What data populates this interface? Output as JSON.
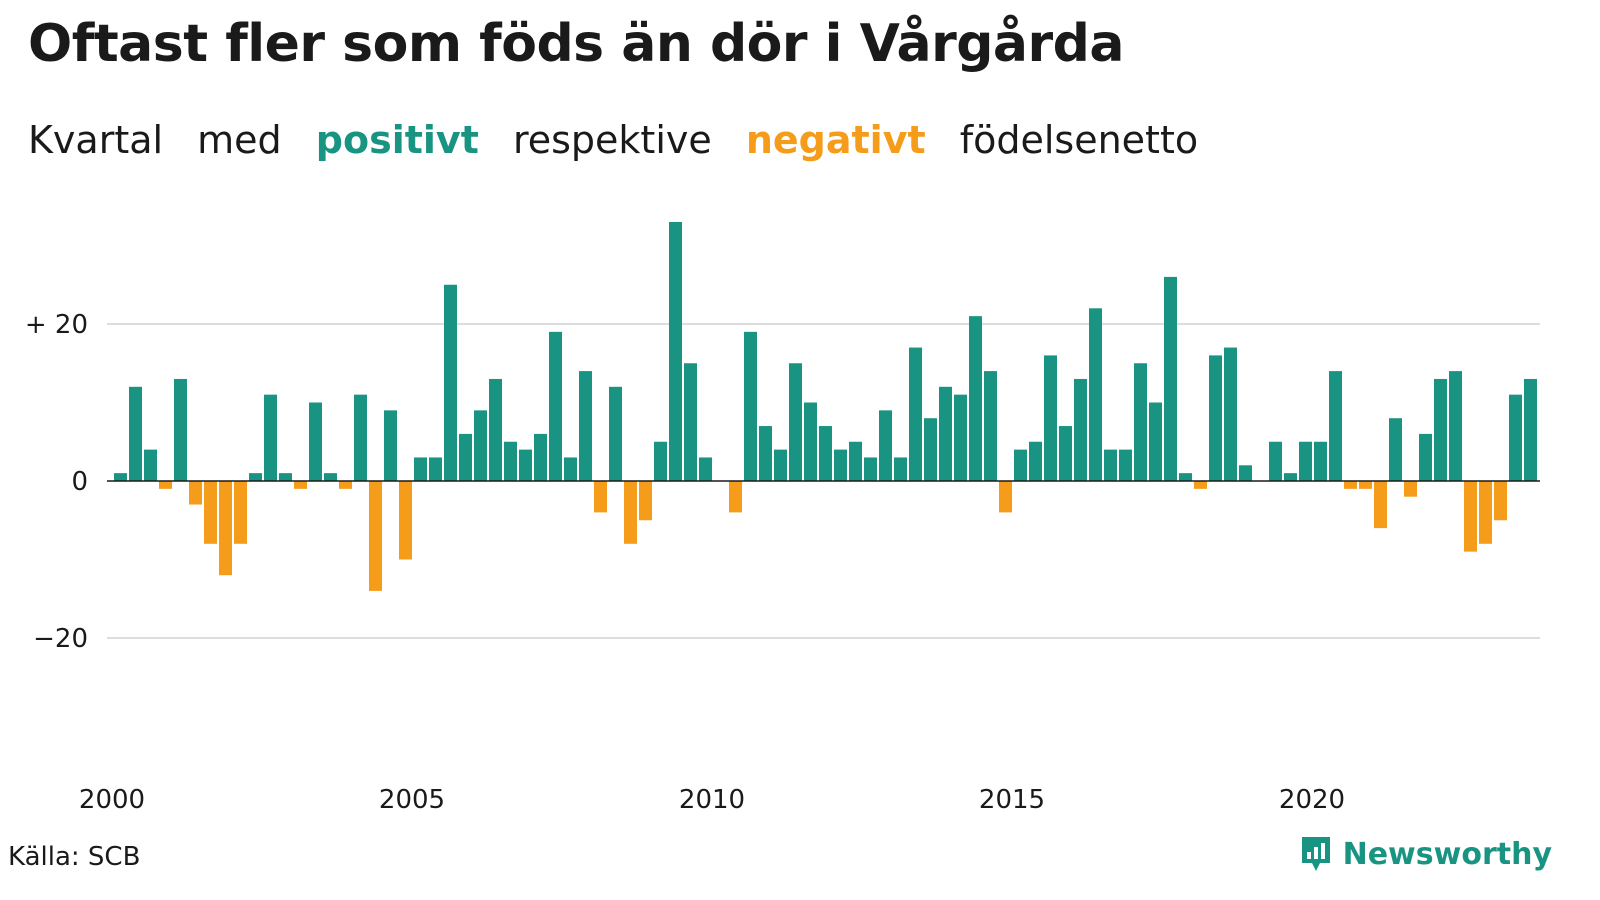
{
  "title": "Oftast fler som föds än dör i Vårgårda",
  "subtitle": {
    "part1": "Kvartal",
    "part2": "med",
    "positive_label": "positivt",
    "part3": "respektive",
    "negative_label": "negativt",
    "part4": "födelsenetto"
  },
  "source": "Källa: SCB",
  "brand": "Newsworthy",
  "colors": {
    "positive": "#1a9482",
    "negative": "#f59c1a",
    "grid": "#dddddd",
    "axis": "#1a1a1a"
  },
  "chart_data": {
    "type": "bar",
    "start_year": 2000,
    "quarters_per_year": 4,
    "values": [
      1,
      12,
      4,
      -1,
      13,
      -3,
      -8,
      -12,
      -8,
      1,
      11,
      1,
      -1,
      10,
      1,
      -1,
      11,
      -14,
      9,
      -10,
      3,
      3,
      25,
      6,
      9,
      13,
      5,
      4,
      6,
      19,
      3,
      14,
      -4,
      12,
      -8,
      -5,
      5,
      33,
      15,
      3,
      0,
      -4,
      19,
      7,
      4,
      15,
      10,
      7,
      4,
      5,
      3,
      9,
      3,
      17,
      8,
      12,
      11,
      21,
      14,
      -4,
      4,
      5,
      16,
      7,
      13,
      22,
      4,
      4,
      15,
      10,
      26,
      1,
      -1,
      16,
      17,
      2,
      0,
      5,
      1,
      5,
      5,
      14,
      -1,
      -1,
      -6,
      8,
      -2,
      6,
      13,
      14,
      -9,
      -8,
      -5,
      11,
      13
    ],
    "x_ticks": [
      "2000",
      "2005",
      "2010",
      "2015",
      "2020"
    ],
    "y_ticks": [
      {
        "value": 20,
        "label": "+ 20"
      },
      {
        "value": 0,
        "label": "0"
      },
      {
        "value": -20,
        "label": "−20"
      }
    ],
    "ylim": [
      -37,
      38
    ],
    "grid": true
  }
}
